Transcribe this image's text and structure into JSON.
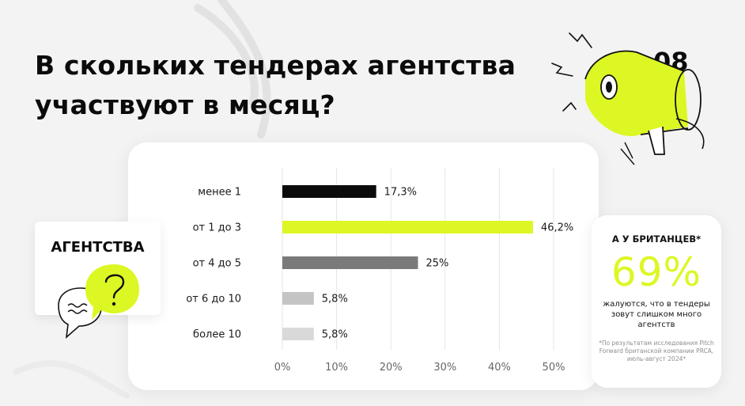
{
  "title_line1": "В скольких тендерах агентства",
  "title_line2": "участвуют в месяц?",
  "page_number": "08",
  "agency_label": "АГЕНТСТВА",
  "colors": {
    "accent": "#ddf724",
    "bar_black": "#0b0b0b",
    "bar_gray": "#7a7a7a",
    "bar_light": "#c4c4c4",
    "bar_lighter": "#d9d9d9"
  },
  "icons": [
    "megaphone-icon",
    "speech-bubbles-icon",
    "question-mark-icon"
  ],
  "stat": {
    "heading": "А У БРИТАНЦЕВ*",
    "value": "69%",
    "description": "жалуются, что в тендеры зовут слишком много агентств",
    "footnote": "*По результатам исследования Pitch Forward британской компании PRCA, июль-август 2024*"
  },
  "chart_data": {
    "type": "bar",
    "orientation": "horizontal",
    "categories": [
      "менее 1",
      "от 1 до 3",
      "от 4 до 5",
      "от 6 до 10",
      "более 10"
    ],
    "values": [
      17.3,
      46.2,
      25,
      5.8,
      5.8
    ],
    "value_labels": [
      "17,3%",
      "46,2%",
      "25%",
      "5,8%",
      "5,8%"
    ],
    "bar_colors": [
      "#0b0b0b",
      "#ddf724",
      "#7a7a7a",
      "#c4c4c4",
      "#d9d9d9"
    ],
    "xlim": [
      0,
      50
    ],
    "x_ticks": [
      0,
      10,
      20,
      30,
      40,
      50
    ],
    "x_tick_labels": [
      "0%",
      "10%",
      "20%",
      "30%",
      "40%",
      "50%"
    ],
    "grid": "vertical"
  }
}
